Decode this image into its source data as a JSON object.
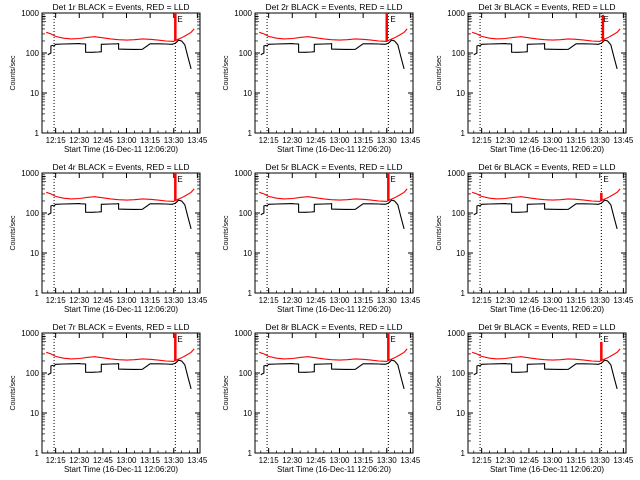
{
  "chart_data": [
    {
      "type": "line",
      "title": "Det 1r BLACK = Events, RED = LLD",
      "xlabel": "Start Time (16-Dec-11 12:06:20)",
      "ylabel": "Counts/sec",
      "ylim": [
        1,
        1000
      ],
      "yscale": "log",
      "xrange": [
        "12:06:20",
        "13:46:40"
      ],
      "series": [
        {
          "name": "BLACK = Events",
          "color": "#000000"
        },
        {
          "name": "RED = LLD",
          "color": "#ff0000"
        }
      ]
    },
    {
      "type": "line",
      "title": "Det 2r BLACK = Events, RED = LLD",
      "xlabel": "Start Time (16-Dec-11 12:06:20)",
      "ylabel": "Counts/sec",
      "ylim": [
        1,
        1000
      ],
      "yscale": "log",
      "xrange": [
        "12:06:20",
        "13:46:40"
      ],
      "series": [
        {
          "name": "BLACK = Events",
          "color": "#000000"
        },
        {
          "name": "RED = LLD",
          "color": "#ff0000"
        }
      ]
    },
    {
      "type": "line",
      "title": "Det 3r BLACK = Events, RED = LLD",
      "xlabel": "Start Time (16-Dec-11 12:06:20)",
      "ylabel": "Counts/sec",
      "ylim": [
        1,
        1000
      ],
      "yscale": "log",
      "xrange": [
        "12:06:20",
        "13:46:40"
      ],
      "series": [
        {
          "name": "BLACK = Events",
          "color": "#000000"
        },
        {
          "name": "RED = LLD",
          "color": "#ff0000"
        }
      ]
    },
    {
      "type": "line",
      "title": "Det 4r BLACK = Events, RED = LLD",
      "xlabel": "Start Time (16-Dec-11 12:06:20)",
      "ylabel": "Counts/sec",
      "ylim": [
        1,
        1000
      ],
      "yscale": "log",
      "xrange": [
        "12:06:20",
        "13:46:40"
      ],
      "series": [
        {
          "name": "BLACK = Events",
          "color": "#000000"
        },
        {
          "name": "RED = LLD",
          "color": "#ff0000"
        }
      ]
    },
    {
      "type": "line",
      "title": "Det 5r BLACK = Events, RED = LLD",
      "xlabel": "Start Time (16-Dec-11 12:06:20)",
      "ylabel": "Counts/sec",
      "ylim": [
        1,
        1000
      ],
      "yscale": "log",
      "xrange": [
        "12:06:20",
        "13:46:40"
      ],
      "series": [
        {
          "name": "BLACK = Events",
          "color": "#000000"
        },
        {
          "name": "RED = LLD",
          "color": "#ff0000"
        }
      ]
    },
    {
      "type": "line",
      "title": "Det 6r BLACK = Events, RED = LLD",
      "xlabel": "Start Time (16-Dec-11 12:06:20)",
      "ylabel": "Counts/sec",
      "ylim": [
        1,
        1000
      ],
      "yscale": "log",
      "xrange": [
        "12:06:20",
        "13:46:40"
      ],
      "series": [
        {
          "name": "BLACK = Events",
          "color": "#000000"
        },
        {
          "name": "RED = LLD",
          "color": "#ff0000"
        }
      ]
    },
    {
      "type": "line",
      "title": "Det 7r BLACK = Events, RED = LLD",
      "xlabel": "Start Time (16-Dec-11 12:06:20)",
      "ylabel": "Counts/sec",
      "ylim": [
        1,
        1000
      ],
      "yscale": "log",
      "xrange": [
        "12:06:20",
        "13:46:40"
      ],
      "series": [
        {
          "name": "BLACK = Events",
          "color": "#000000"
        },
        {
          "name": "RED = LLD",
          "color": "#ff0000"
        }
      ]
    },
    {
      "type": "line",
      "title": "Det 8r BLACK = Events, RED = LLD",
      "xlabel": "Start Time (16-Dec-11 12:06:20)",
      "ylabel": "Counts/sec",
      "ylim": [
        1,
        1000
      ],
      "yscale": "log",
      "xrange": [
        "12:06:20",
        "13:46:40"
      ],
      "series": [
        {
          "name": "BLACK = Events",
          "color": "#000000"
        },
        {
          "name": "RED = LLD",
          "color": "#ff0000"
        }
      ]
    },
    {
      "type": "line",
      "title": "Det 9r BLACK = Events, RED = LLD",
      "xlabel": "Start Time (16-Dec-11 12:06:20)",
      "ylabel": "Counts/sec",
      "ylim": [
        1,
        1000
      ],
      "yscale": "log",
      "xrange": [
        "12:06:20",
        "13:46:40"
      ],
      "series": [
        {
          "name": "BLACK = Events",
          "color": "#000000"
        },
        {
          "name": "RED = LLD",
          "color": "#ff0000"
        }
      ]
    }
  ],
  "shared": {
    "x_ticks": [
      "12:15",
      "12:30",
      "12:45",
      "13:00",
      "13:15",
      "13:30",
      "13:45"
    ],
    "y_ticks": [
      "1",
      "10",
      "100",
      "1000"
    ],
    "markers": [
      "E",
      "E"
    ],
    "time_markers": [
      "12:14",
      "13:31"
    ],
    "event_series": {
      "t": [
        "12:10",
        "12:11",
        "12:12",
        "12:12",
        "12:13",
        "12:14",
        "12:15",
        "12:20",
        "12:25",
        "12:30",
        "12:31",
        "12:34",
        "12:34",
        "12:38",
        "12:42",
        "12:44",
        "12:44",
        "12:50",
        "12:54",
        "12:55",
        "12:55",
        "13:00",
        "13:05",
        "13:10",
        "13:15",
        "13:20",
        "13:25",
        "13:29",
        "13:31",
        "13:32",
        "13:33",
        "13:35",
        "13:37",
        "13:39",
        "13:41"
      ],
      "v": [
        90,
        95,
        100,
        150,
        155,
        150,
        165,
        168,
        170,
        172,
        170,
        168,
        105,
        104,
        106,
        108,
        165,
        168,
        170,
        172,
        125,
        124,
        123,
        124,
        170,
        170,
        168,
        165,
        175,
        190,
        210,
        200,
        160,
        80,
        40
      ]
    },
    "lld_series": {
      "t": [
        "12:09",
        "12:12",
        "12:15",
        "12:20",
        "12:25",
        "12:30",
        "12:35",
        "12:40",
        "12:45",
        "12:50",
        "12:55",
        "13:00",
        "13:05",
        "13:10",
        "13:15",
        "13:20",
        "13:25",
        "13:30",
        "13:32",
        "13:35",
        "13:38",
        "13:41",
        "13:43"
      ],
      "v": [
        330,
        300,
        260,
        235,
        225,
        230,
        245,
        255,
        240,
        225,
        215,
        210,
        215,
        225,
        220,
        210,
        200,
        195,
        215,
        240,
        280,
        330,
        400
      ]
    },
    "spikes": [
      {
        "t": "13:31",
        "v": 1000
      },
      {
        "t": "13:30",
        "v": 1000
      },
      {
        "t": "13:32",
        "v": 900
      },
      {
        "t": "13:31",
        "v": 1000
      },
      {
        "t": "13:31",
        "v": 1000
      },
      {
        "t": "13:31",
        "v": 320
      },
      {
        "t": "13:31",
        "v": 1000
      },
      {
        "t": "13:31",
        "v": 1000
      },
      {
        "t": "13:31",
        "v": 600
      }
    ]
  }
}
